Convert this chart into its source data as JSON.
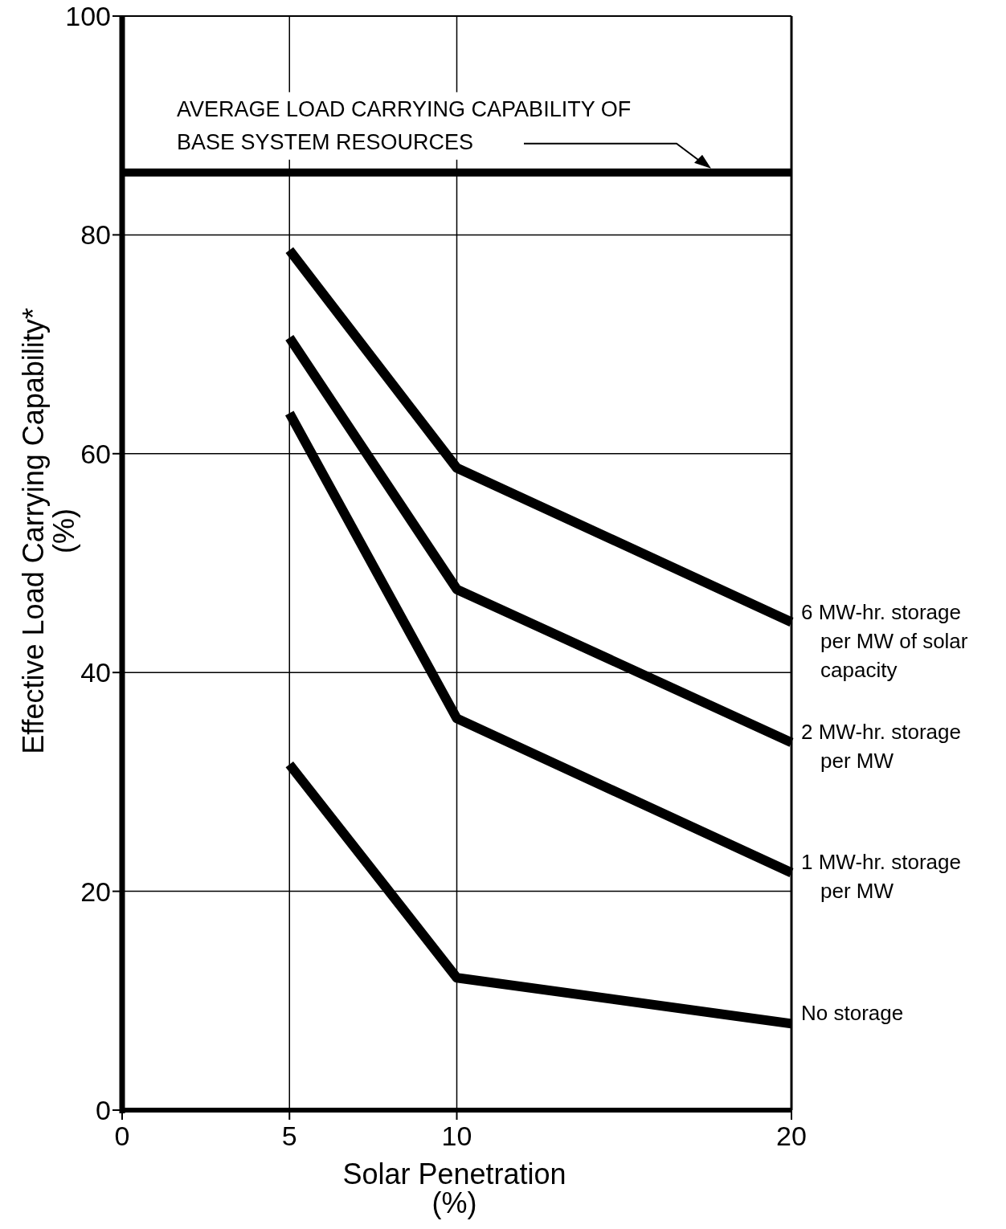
{
  "chart_data": {
    "type": "line",
    "xlabel": "Solar Penetration (%)",
    "ylabel": "Effective Load Carrying Capability* (%)",
    "xlim": [
      0,
      20
    ],
    "xticks": [
      0,
      5,
      10,
      20
    ],
    "ylim": [
      0,
      100
    ],
    "yticks": [
      0,
      20,
      40,
      60,
      80,
      100
    ],
    "grid": true,
    "line_style": "solid",
    "marker": "none",
    "ref_lines": [
      {
        "axis": "y",
        "value": 85.7,
        "label": "AVERAGE LOAD CARRYING CAPABILITY OF BASE SYSTEM RESOURCES",
        "color": "#000000"
      }
    ],
    "x": [
      5,
      10,
      20
    ],
    "series": [
      {
        "name": "6 MW-hr. storage per MW of solar capacity",
        "color": "#000000",
        "values": [
          78.6,
          58.7,
          44.6
        ]
      },
      {
        "name": "2 MW-hr. storage per MW",
        "color": "#000000",
        "values": [
          70.6,
          47.6,
          33.6
        ]
      },
      {
        "name": "1 MW-hr. storage per MW",
        "color": "#000000",
        "values": [
          63.7,
          35.8,
          21.7
        ]
      },
      {
        "name": "No storage",
        "color": "#000000",
        "values": [
          31.6,
          12.1,
          7.9
        ]
      }
    ]
  }
}
